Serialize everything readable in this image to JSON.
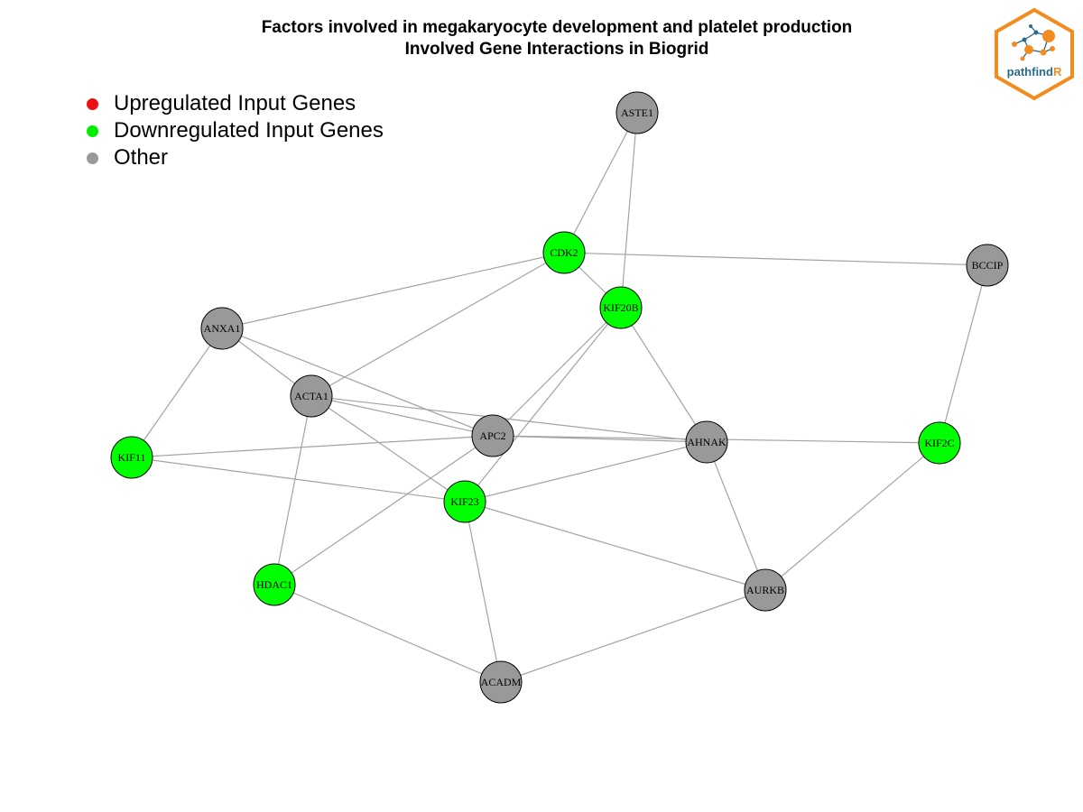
{
  "title": {
    "line1": "Factors involved in megakaryocyte development and platelet production",
    "line2": "Involved Gene Interactions in Biogrid"
  },
  "legend": [
    {
      "label": "Upregulated Input Genes",
      "color": "#ee1111"
    },
    {
      "label": "Downregulated Input Genes",
      "color": "#00ee00"
    },
    {
      "label": "Other",
      "color": "#999999"
    }
  ],
  "colors": {
    "up": "#ff0000",
    "down": "#00ff00",
    "other": "#999999",
    "edge": "#a3a3a3"
  },
  "logo": {
    "text_main": "pathfind",
    "text_accent": "R",
    "accent_color": "#f28c1e",
    "text_color": "#2a6a8a"
  },
  "network": {
    "nodes": [
      {
        "id": "ASTE1",
        "status": "other"
      },
      {
        "id": "CDK2",
        "status": "down"
      },
      {
        "id": "BCCIP",
        "status": "other"
      },
      {
        "id": "KIF20B",
        "status": "down"
      },
      {
        "id": "ANXA1",
        "status": "other"
      },
      {
        "id": "ACTA1",
        "status": "other"
      },
      {
        "id": "APC2",
        "status": "other"
      },
      {
        "id": "AHNAK",
        "status": "other"
      },
      {
        "id": "KIF2C",
        "status": "down"
      },
      {
        "id": "KIF11",
        "status": "down"
      },
      {
        "id": "KIF23",
        "status": "down"
      },
      {
        "id": "HDAC1",
        "status": "down"
      },
      {
        "id": "AURKB",
        "status": "other"
      },
      {
        "id": "ACADM",
        "status": "other"
      }
    ],
    "edges": [
      [
        "ASTE1",
        "CDK2"
      ],
      [
        "ASTE1",
        "KIF20B"
      ],
      [
        "CDK2",
        "BCCIP"
      ],
      [
        "CDK2",
        "KIF20B"
      ],
      [
        "CDK2",
        "ANXA1"
      ],
      [
        "CDK2",
        "ACTA1"
      ],
      [
        "BCCIP",
        "KIF2C"
      ],
      [
        "KIF20B",
        "APC2"
      ],
      [
        "KIF20B",
        "KIF23"
      ],
      [
        "KIF20B",
        "AHNAK"
      ],
      [
        "ANXA1",
        "ACTA1"
      ],
      [
        "ANXA1",
        "APC2"
      ],
      [
        "ANXA1",
        "KIF11"
      ],
      [
        "ACTA1",
        "APC2"
      ],
      [
        "ACTA1",
        "AHNAK"
      ],
      [
        "ACTA1",
        "KIF23"
      ],
      [
        "ACTA1",
        "HDAC1"
      ],
      [
        "APC2",
        "KIF11"
      ],
      [
        "APC2",
        "AHNAK"
      ],
      [
        "APC2",
        "KIF2C"
      ],
      [
        "APC2",
        "HDAC1"
      ],
      [
        "AHNAK",
        "KIF23"
      ],
      [
        "AHNAK",
        "AURKB"
      ],
      [
        "KIF2C",
        "AURKB"
      ],
      [
        "KIF11",
        "KIF23"
      ],
      [
        "KIF23",
        "AURKB"
      ],
      [
        "KIF23",
        "ACADM"
      ],
      [
        "HDAC1",
        "ACADM"
      ],
      [
        "AURKB",
        "ACADM"
      ]
    ]
  }
}
